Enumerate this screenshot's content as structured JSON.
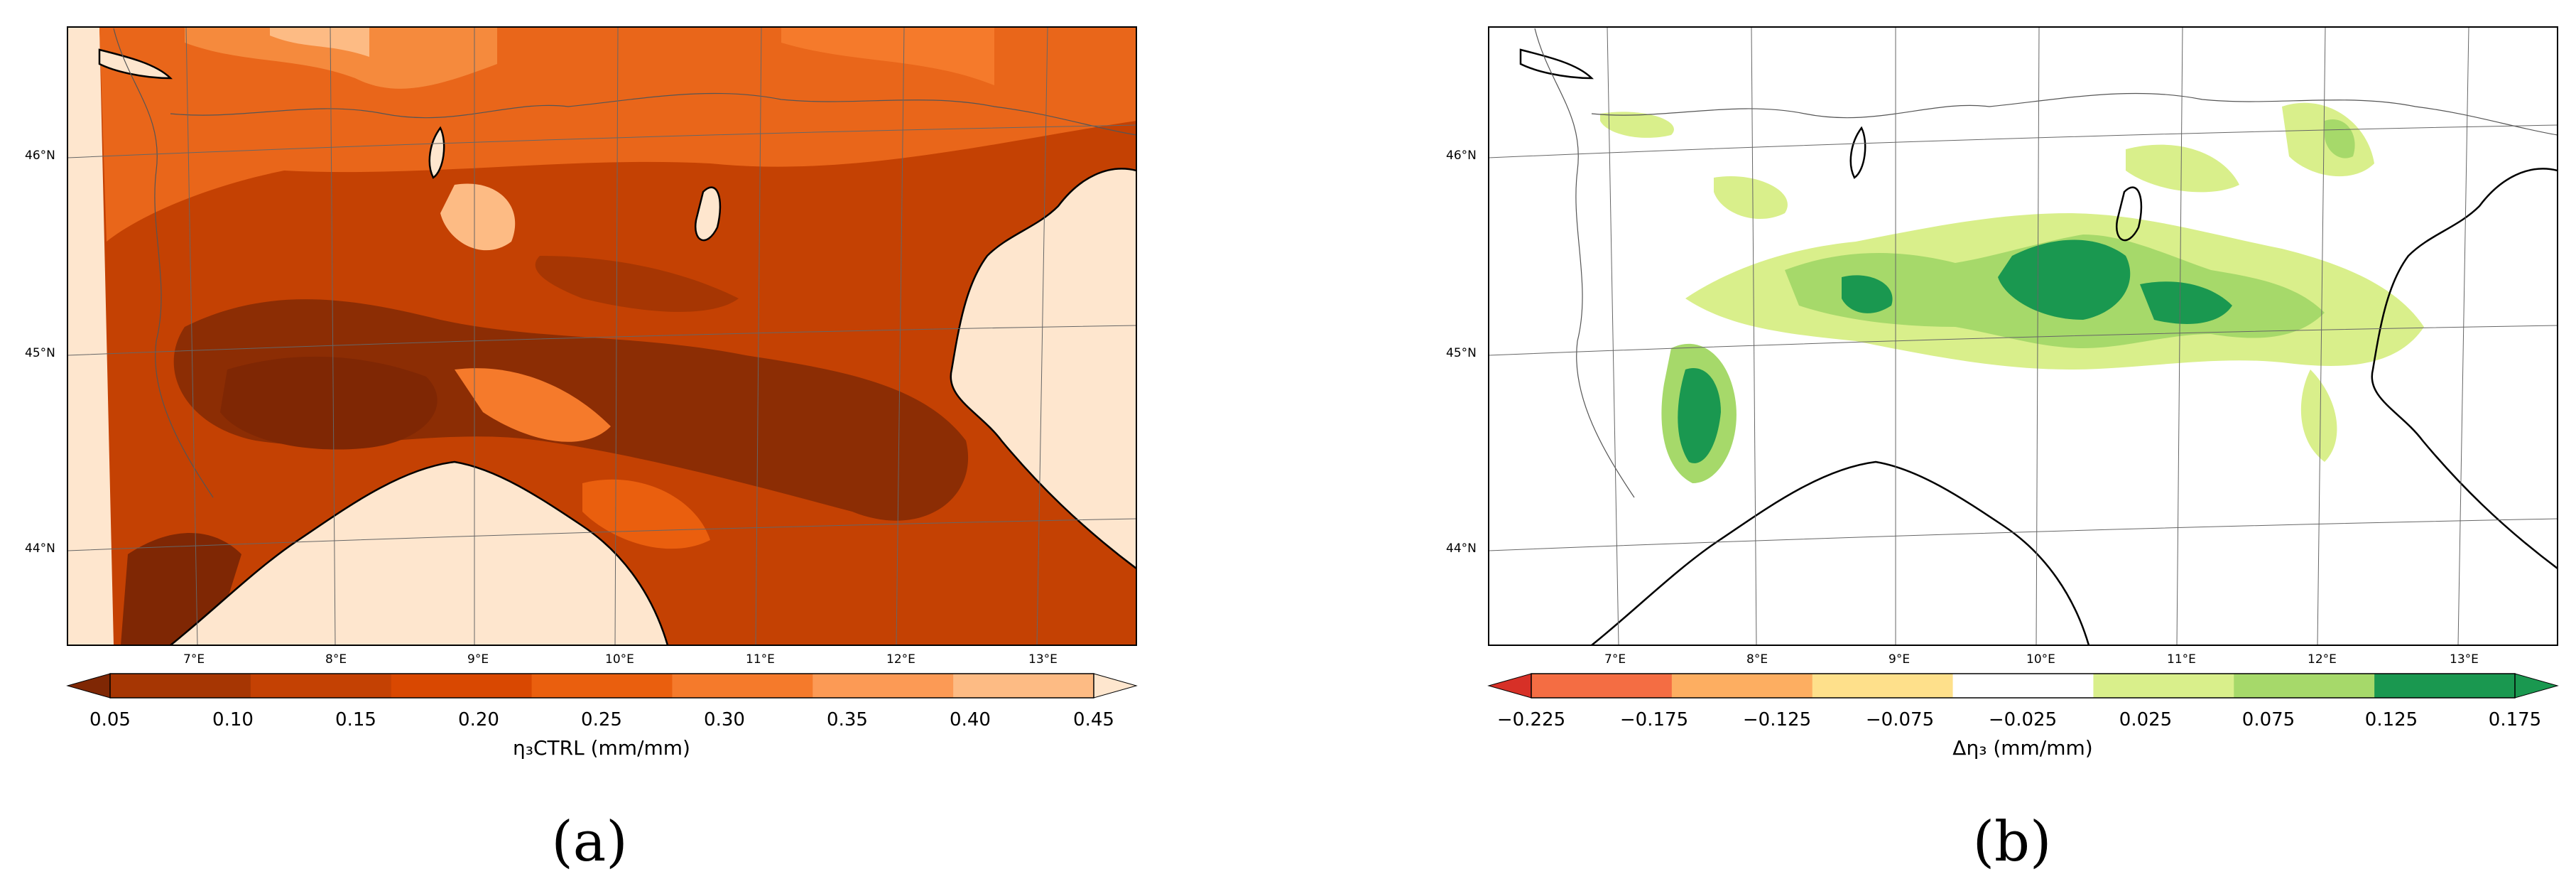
{
  "panels": [
    {
      "id": "a",
      "letter": "(a)",
      "lon_labels": [
        "7°E",
        "8°E",
        "9°E",
        "10°E",
        "11°E",
        "12°E",
        "13°E"
      ],
      "lat_labels": [
        "46°N",
        "45°N",
        "44°N"
      ],
      "colorbar": {
        "ticks": [
          "0.05",
          "0.10",
          "0.15",
          "0.20",
          "0.25",
          "0.30",
          "0.35",
          "0.40",
          "0.45"
        ],
        "colors": [
          "#7f2704",
          "#a63603",
          "#c44103",
          "#d94801",
          "#ea5f0e",
          "#f57a2b",
          "#fc9a55",
          "#fdbb84",
          "#fee6ce"
        ],
        "extend": "both",
        "title": "η₃CTRL (mm/mm)"
      }
    },
    {
      "id": "b",
      "letter": "(b)",
      "lon_labels": [
        "7°E",
        "8°E",
        "9°E",
        "10°E",
        "11°E",
        "12°E",
        "13°E"
      ],
      "lat_labels": [
        "46°N",
        "45°N",
        "44°N"
      ],
      "colorbar": {
        "ticks": [
          "−0.225",
          "−0.175",
          "−0.125",
          "−0.075",
          "−0.025",
          "0.025",
          "0.075",
          "0.125",
          "0.175"
        ],
        "colors": [
          "#d73027",
          "#f46d43",
          "#fdae61",
          "#fee08b",
          "#ffffff",
          "#d9ef8b",
          "#a6d96a",
          "#1a9850",
          "#1a9850"
        ],
        "extend": "both",
        "title": "Δη₃ (mm/mm)"
      }
    }
  ]
}
